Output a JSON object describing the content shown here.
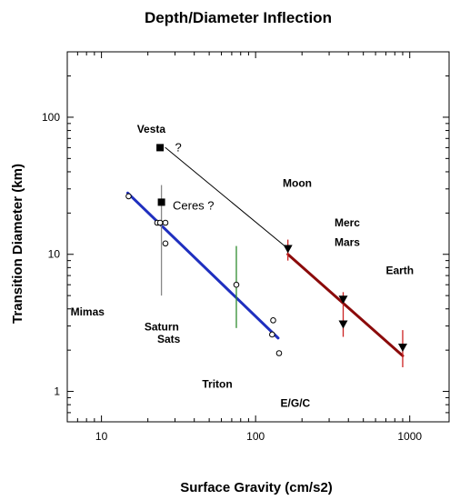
{
  "chart_data": {
    "type": "scatter",
    "title": "Depth/Diameter Inflection",
    "xlabel": "Surface Gravity (cm/s2)",
    "ylabel": "Transition Diameter (km)",
    "x_scale": "log",
    "y_scale": "log",
    "xlim": [
      6,
      1800
    ],
    "ylim": [
      0.6,
      300
    ],
    "x_ticks": [
      {
        "value": 10,
        "label": "10"
      },
      {
        "value": 100,
        "label": "100"
      },
      {
        "value": 1000,
        "label": "1000"
      }
    ],
    "y_ticks": [
      {
        "value": 1,
        "label": "1"
      },
      {
        "value": 10,
        "label": "10"
      },
      {
        "value": 100,
        "label": "100"
      }
    ],
    "grid": false,
    "series": [
      {
        "marker": "open-circle",
        "color": "#000000",
        "points": [
          {
            "x": 15,
            "y": 26.5
          },
          {
            "x": 23,
            "y": 17
          },
          {
            "x": 24,
            "y": 17
          },
          {
            "x": 26,
            "y": 17
          },
          {
            "x": 26,
            "y": 12
          },
          {
            "x": 75,
            "y": 6
          },
          {
            "x": 130,
            "y": 3.3
          },
          {
            "x": 128,
            "y": 2.6
          },
          {
            "x": 142,
            "y": 1.9
          }
        ]
      },
      {
        "marker": "filled-square",
        "color": "#000000",
        "points": [
          {
            "x": 24,
            "y": 60
          },
          {
            "x": 24.5,
            "y": 24
          }
        ]
      },
      {
        "marker": "filled-triangle-down",
        "color": "#000000",
        "points": [
          {
            "x": 162,
            "y": 11
          },
          {
            "x": 370,
            "y": 4.7
          },
          {
            "x": 370,
            "y": 3.1
          },
          {
            "x": 900,
            "y": 2.1
          }
        ]
      }
    ],
    "error_bars": [
      {
        "x": 24.5,
        "low": 5,
        "high": 32,
        "color": "#888888"
      },
      {
        "x": 75,
        "low": 2.9,
        "high": 11.5,
        "color": "#2e8b2e"
      },
      {
        "x": 162,
        "low": 9,
        "high": 12.8,
        "color": "#cc2222"
      },
      {
        "x": 370,
        "low": 2.5,
        "high": 5.3,
        "color": "#cc2222"
      },
      {
        "x": 900,
        "low": 1.5,
        "high": 2.8,
        "color": "#cc2222"
      }
    ],
    "fit_lines": [
      {
        "color": "#1f2fbf",
        "width": 3,
        "from": {
          "x": 14.8,
          "y": 28
        },
        "to": {
          "x": 140,
          "y": 2.45
        }
      },
      {
        "color": "#8b0a0a",
        "width": 3,
        "from": {
          "x": 162,
          "y": 10
        },
        "to": {
          "x": 900,
          "y": 1.82
        }
      },
      {
        "color": "#000000",
        "width": 1,
        "from": {
          "x": 26,
          "y": 60
        },
        "to": {
          "x": 162,
          "y": 11
        }
      }
    ],
    "annotations": [
      {
        "text": "Vesta",
        "x": 17,
        "y": 82,
        "bold": true
      },
      {
        "text": "?",
        "x": 30,
        "y": 60,
        "bold": false
      },
      {
        "text": "Ceres ?",
        "x": 29,
        "y": 22.5,
        "bold": false
      },
      {
        "text": "Moon",
        "x": 150,
        "y": 33,
        "bold": true
      },
      {
        "text": "Merc",
        "x": 325,
        "y": 17,
        "bold": true
      },
      {
        "text": "Mars",
        "x": 325,
        "y": 12.2,
        "bold": true
      },
      {
        "text": "Earth",
        "x": 700,
        "y": 7.6,
        "bold": true
      },
      {
        "text": "Mimas",
        "x": 6.3,
        "y": 3.8,
        "bold": true
      },
      {
        "text": "Saturn",
        "x": 19,
        "y": 2.95,
        "bold": true
      },
      {
        "text": "Sats",
        "x": 23,
        "y": 2.4,
        "bold": true
      },
      {
        "text": "Triton",
        "x": 45,
        "y": 1.13,
        "bold": true
      },
      {
        "text": "E/G/C",
        "x": 145,
        "y": 0.82,
        "bold": true
      }
    ]
  }
}
